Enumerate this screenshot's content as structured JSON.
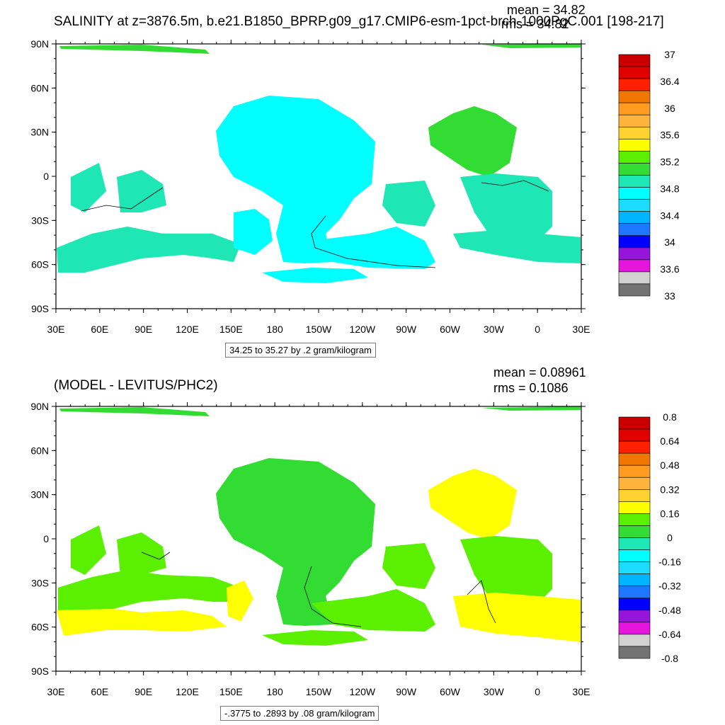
{
  "panels": [
    {
      "title": "SALINITY at z=3876.5m, b.e21.B1850_BPRP.g09_g17.CMIP6-esm-1pct-brch-1000PgC.001 [198-217]",
      "mean_text": "mean = 34.82",
      "rms_text": "rms = 34.82",
      "contour_info": "34.25 to 35.27 by .2 gram/kilogram",
      "colorbar_labels": [
        "37",
        "36.4",
        "36",
        "35.6",
        "35.2",
        "34.8",
        "34.4",
        "34",
        "33.6",
        "33"
      ]
    },
    {
      "title": "(MODEL - LEVITUS/PHC2)",
      "mean_text": "mean = 0.08961",
      "rms_text": "rms = 0.1086",
      "contour_info": "-.3775 to .2893 by .08 gram/kilogram",
      "colorbar_labels": [
        "0.8",
        "0.64",
        "0.48",
        "0.32",
        "0.16",
        "0",
        "-0.16",
        "-0.32",
        "-0.48",
        "-0.64",
        "-0.8"
      ]
    }
  ],
  "lat_labels": [
    "90N",
    "60N",
    "30N",
    "0",
    "30S",
    "60S",
    "90S"
  ],
  "lon_labels": [
    "30E",
    "60E",
    "90E",
    "120E",
    "150E",
    "180",
    "150W",
    "120W",
    "90W",
    "60W",
    "30W",
    "0",
    "30E"
  ],
  "colorbar_colors": [
    "#c80000",
    "#e00000",
    "#ff2000",
    "#f07800",
    "#ff9b20",
    "#ffb43c",
    "#ffd232",
    "#ffff00",
    "#5af000",
    "#32dc32",
    "#1ee6b4",
    "#00ffff",
    "#1edcff",
    "#00b4ff",
    "#1e78ff",
    "#0000ff",
    "#9614dc",
    "#e614dc",
    "#d2d2d2",
    "#737373"
  ],
  "colors": {
    "salinity_ocean": "#00ffff",
    "salinity_east": "#32dc32",
    "salinity_teal": "#1ee6b4",
    "anomaly_green": "#5af000",
    "anomaly_mid": "#32dc32",
    "anomaly_yellow": "#ffff00",
    "anomaly_blue": "#1e78ff"
  }
}
